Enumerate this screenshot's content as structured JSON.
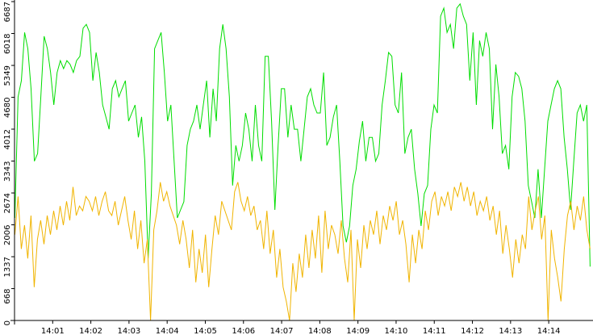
{
  "chart_data": {
    "type": "line",
    "xlim": [
      0,
      15.16
    ],
    "xticks": [
      {
        "value": 1,
        "label": "14:01"
      },
      {
        "value": 2,
        "label": "14:02"
      },
      {
        "value": 3,
        "label": "14:03"
      },
      {
        "value": 4,
        "label": "14:04"
      },
      {
        "value": 5,
        "label": "14:05"
      },
      {
        "value": 6,
        "label": "14:06"
      },
      {
        "value": 7,
        "label": "14:07"
      },
      {
        "value": 8,
        "label": "14:08"
      },
      {
        "value": 9,
        "label": "14:09"
      },
      {
        "value": 10,
        "label": "14:10"
      },
      {
        "value": 11,
        "label": "14:11"
      },
      {
        "value": 12,
        "label": "14:12"
      },
      {
        "value": 13,
        "label": "14:13"
      },
      {
        "value": 14,
        "label": "14:14"
      }
    ],
    "ylim": [
      0,
      6687
    ],
    "yticks": [
      0,
      668,
      1337,
      2006,
      2674,
      3343,
      4012,
      4680,
      5349,
      6018,
      6687
    ],
    "series": [
      {
        "color": "#00dd00",
        "values": [
          2150,
          4690,
          5030,
          6040,
          5700,
          4860,
          3340,
          3500,
          4690,
          5960,
          5700,
          5200,
          4520,
          5200,
          5450,
          5280,
          5450,
          5370,
          5200,
          5450,
          5540,
          6130,
          6210,
          6040,
          5030,
          5620,
          5200,
          4520,
          4270,
          4010,
          4860,
          5030,
          4690,
          4860,
          5030,
          4180,
          4350,
          4520,
          3840,
          4270,
          3340,
          1300,
          2660,
          5700,
          5870,
          6040,
          5200,
          4180,
          4520,
          3340,
          2150,
          2320,
          2490,
          3670,
          4010,
          4180,
          4520,
          4010,
          4520,
          5030,
          3840,
          4860,
          4180,
          5700,
          6210,
          5700,
          4690,
          2830,
          3670,
          3340,
          3670,
          4350,
          4010,
          3340,
          4520,
          3670,
          3340,
          5540,
          5540,
          4180,
          2320,
          3670,
          4860,
          4860,
          3840,
          4520,
          4010,
          4010,
          3340,
          4010,
          4690,
          4860,
          4520,
          4350,
          4350,
          5200,
          3670,
          3840,
          4270,
          4520,
          3340,
          1980,
          1640,
          1980,
          2830,
          3170,
          3760,
          4180,
          3340,
          3840,
          3840,
          3340,
          3500,
          4520,
          5030,
          5620,
          5540,
          4520,
          4350,
          5200,
          3500,
          3840,
          4010,
          3170,
          2660,
          1980,
          2660,
          2830,
          4010,
          4520,
          4350,
          6380,
          6550,
          6040,
          6210,
          5700,
          6550,
          6640,
          6380,
          6210,
          5030,
          6040,
          4520,
          5870,
          5540,
          6040,
          5700,
          4010,
          5370,
          4690,
          3500,
          3670,
          3170,
          4690,
          5200,
          5120,
          4860,
          4180,
          2830,
          2490,
          2150,
          3170,
          2150,
          3170,
          4180,
          4520,
          4860,
          5030,
          4860,
          3840,
          3170,
          2320,
          3340,
          4350,
          4520,
          4180,
          4520,
          1130
        ]
      },
      {
        "color": "#f0b400",
        "values": [
          1800,
          2600,
          1500,
          2000,
          1300,
          2200,
          700,
          1700,
          2100,
          1600,
          2200,
          1800,
          2300,
          1900,
          2400,
          2000,
          2500,
          2100,
          2800,
          2200,
          2400,
          2300,
          2600,
          2500,
          2300,
          2600,
          2200,
          2500,
          2700,
          2300,
          2200,
          2500,
          2000,
          2300,
          2600,
          2100,
          1700,
          2300,
          1500,
          2100,
          1200,
          1700,
          0,
          1900,
          2300,
          2900,
          2500,
          2700,
          2400,
          2200,
          2000,
          1600,
          2100,
          1700,
          1100,
          1900,
          800,
          1500,
          1000,
          1800,
          700,
          1500,
          2200,
          1800,
          2500,
          2300,
          2100,
          1900,
          2700,
          2900,
          2500,
          2300,
          2600,
          2200,
          2400,
          1900,
          2100,
          1500,
          2300,
          1400,
          1900,
          900,
          1500,
          700,
          400,
          0,
          1200,
          600,
          1400,
          900,
          1800,
          1100,
          1900,
          1300,
          2200,
          1000,
          2300,
          1500,
          2000,
          1800,
          1400,
          2100,
          1300,
          800,
          1900,
          0,
          1700,
          1100,
          2000,
          1500,
          2100,
          1800,
          2300,
          1600,
          2200,
          1900,
          2400,
          2100,
          2500,
          1800,
          2100,
          1600,
          800,
          1800,
          1200,
          1900,
          1500,
          2300,
          1900,
          2500,
          2700,
          2200,
          2600,
          2400,
          2700,
          2300,
          2800,
          2600,
          2900,
          2500,
          2800,
          2400,
          2700,
          2200,
          2500,
          2300,
          2600,
          2100,
          2400,
          1800,
          2300,
          1400,
          2000,
          1500,
          900,
          1700,
          1200,
          1800,
          1500,
          2600,
          1900,
          2300,
          2600,
          1700,
          2200,
          0,
          1900,
          1300,
          900,
          400,
          1500,
          2200,
          2500,
          1900,
          2400,
          2100,
          2600,
          1900,
          1500
        ]
      }
    ]
  }
}
